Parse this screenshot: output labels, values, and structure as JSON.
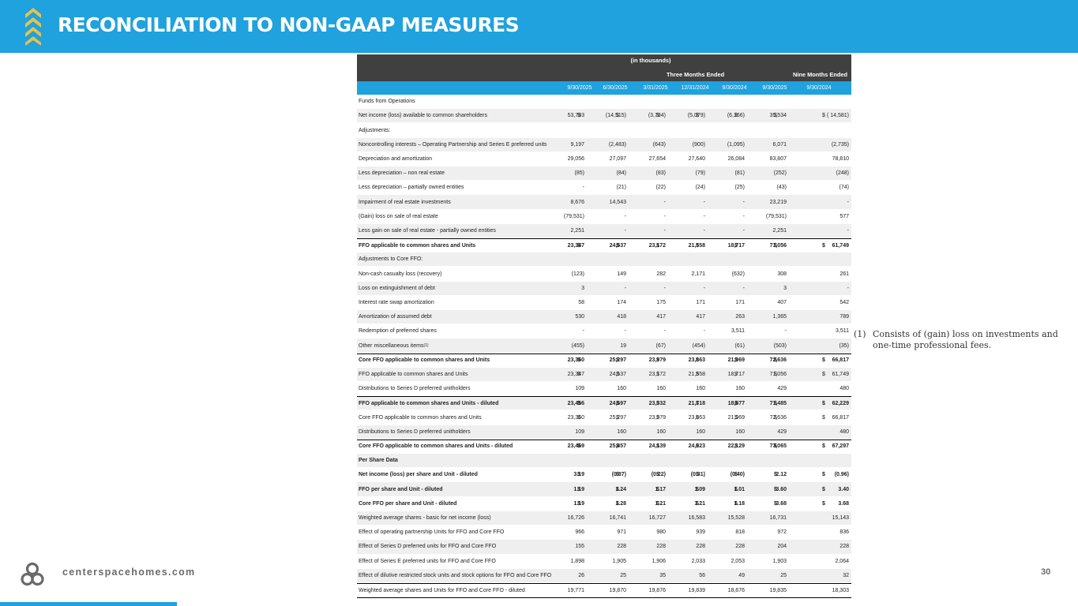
{
  "header": {
    "title": "RECONCILIATION TO NON-GAAP MEASURES"
  },
  "table": {
    "units_note": "(in thousands)",
    "group_three": "Three Months Ended",
    "group_nine": "Nine Months Ended",
    "columns": [
      "9/30/2025",
      "6/30/2025",
      "3/31/2025",
      "12/31/2024",
      "9/30/2024",
      "9/30/2025",
      "9/30/2024"
    ],
    "rows": [
      {
        "label": "Funds from Operations",
        "values": []
      },
      {
        "label": "Net income (loss) available to common shareholders",
        "dollar": true,
        "values": [
          "53,783",
          "(14,515)",
          "(3,734)",
          "(5,079)",
          "(6,166)",
          "35,534",
          "( 14,581)"
        ]
      },
      {
        "label": "Adjustments:",
        "values": []
      },
      {
        "label": "Noncontrolling interests – Operating Partnership and Series E preferred units",
        "values": [
          "9,197",
          "(2,483)",
          "(643)",
          "(900)",
          "(1,095)",
          "6,071",
          "(2,735)"
        ]
      },
      {
        "label": "Depreciation and amortization",
        "values": [
          "29,056",
          "27,097",
          "27,654",
          "27,640",
          "26,084",
          "83,807",
          "78,810"
        ]
      },
      {
        "label": "Less depreciation – non real estate",
        "values": [
          "(85)",
          "(84)",
          "(83)",
          "(79)",
          "(81)",
          "(252)",
          "(248)"
        ]
      },
      {
        "label": "Less depreciation – partially owned entities",
        "values": [
          "-",
          "(21)",
          "(22)",
          "(24)",
          "(25)",
          "(43)",
          "(74)"
        ]
      },
      {
        "label": "Impairment of real estate investments",
        "values": [
          "8,676",
          "14,543",
          "-",
          "-",
          "-",
          "23,219",
          "-"
        ]
      },
      {
        "label": "(Gain) loss on sale of real estate",
        "values": [
          "(79,531)",
          "-",
          "-",
          "-",
          "-",
          "(79,531)",
          "577"
        ]
      },
      {
        "label": "Less gain on sale of real estate - partially owned entities",
        "values": [
          "2,251",
          "-",
          "-",
          "-",
          "-",
          "2,251",
          "-"
        ]
      },
      {
        "label": "FFO applicable to common shares and Units",
        "bold": true,
        "topline": true,
        "dollar": true,
        "values": [
          "23,347",
          "24,537",
          "23,172",
          "21,558",
          "18,717",
          "71,056",
          "61,749"
        ]
      },
      {
        "label": "Adjustments to Core FFO:",
        "values": []
      },
      {
        "label": "Non-cash casualty loss (recovery)",
        "values": [
          "(123)",
          "149",
          "282",
          "2,171",
          "(632)",
          "308",
          "261"
        ]
      },
      {
        "label": "Loss on extinguishment of debt",
        "values": [
          "3",
          "-",
          "-",
          "-",
          "-",
          "3",
          "-"
        ]
      },
      {
        "label": "Interest rate swap amortization",
        "values": [
          "58",
          "174",
          "175",
          "171",
          "171",
          "407",
          "542"
        ]
      },
      {
        "label": "Amortization of assumed debt",
        "values": [
          "530",
          "418",
          "417",
          "417",
          "263",
          "1,365",
          "789"
        ]
      },
      {
        "label": "Redemption of preferred shares",
        "values": [
          "-",
          "-",
          "-",
          "-",
          "3,511",
          "-",
          "3,511"
        ]
      },
      {
        "label": "Other miscellaneous items",
        "sup": "(1)",
        "values": [
          "(455)",
          "19",
          "(67)",
          "(454)",
          "(61)",
          "(503)",
          "(35)"
        ]
      },
      {
        "label": "Core FFO applicable to common shares and Units",
        "bold": true,
        "topline": true,
        "dollar": true,
        "values": [
          "23,360",
          "25,297",
          "23,979",
          "23,863",
          "21,969",
          "72,636",
          "66,817"
        ]
      },
      {
        "label": "FFO applicable to common shares and Units",
        "dollar": true,
        "values": [
          "23,347",
          "24,537",
          "23,172",
          "21,558",
          "18,717",
          "71,056",
          "61,749"
        ]
      },
      {
        "label": "Distributions to Series D preferred unitholders",
        "values": [
          "109",
          "160",
          "160",
          "160",
          "160",
          "429",
          "480"
        ]
      },
      {
        "label": "FFO applicable to common shares and Units - diluted",
        "bold": true,
        "topline": true,
        "dollar": true,
        "values": [
          "23,456",
          "24,697",
          "23,332",
          "21,718",
          "18,877",
          "71,485",
          "62,229"
        ]
      },
      {
        "label": "Core FFO applicable to common shares and Units",
        "dollar": true,
        "values": [
          "23,360",
          "25,297",
          "23,979",
          "23,863",
          "21,969",
          "72,636",
          "66,817"
        ]
      },
      {
        "label": "Distributions to Series D preferred unitholders",
        "values": [
          "109",
          "160",
          "160",
          "160",
          "160",
          "429",
          "480"
        ]
      },
      {
        "label": "Core FFO applicable to common shares and Units - diluted",
        "bold": true,
        "topline": true,
        "dollar": true,
        "values": [
          "23,469",
          "25,457",
          "24,139",
          "24,023",
          "22,129",
          "73,065",
          "67,297"
        ]
      },
      {
        "label": "Per Share Data",
        "bold": true,
        "values": []
      },
      {
        "label": "Net income (loss) per share and Unit - diluted",
        "bold": true,
        "dollar": true,
        "values": [
          "3.19",
          "(0.87)",
          "(0.22)",
          "(0.31)",
          "(0.40)",
          "2.12",
          "(0.96)"
        ]
      },
      {
        "label": "FFO per share and Unit - diluted",
        "bold": true,
        "dollar": true,
        "values": [
          "1.19",
          "1.24",
          "1.17",
          "1.09",
          "1.01",
          "3.60",
          "3.40"
        ]
      },
      {
        "label": "Core FFO per share and Unit - diluted",
        "bold": true,
        "dollar": true,
        "values": [
          "1.19",
          "1.28",
          "1.21",
          "1.21",
          "1.18",
          "3.68",
          "3.68"
        ]
      },
      {
        "label": "Weighted average shares - basic for net  income (loss)",
        "values": [
          "16,726",
          "16,741",
          "16,727",
          "16,583",
          "15,528",
          "16,731",
          "15,143"
        ]
      },
      {
        "label": "Effect of operating partnership Units for FFO and Core FFO",
        "values": [
          "966",
          "971",
          "980",
          "939",
          "818",
          "972",
          "836"
        ]
      },
      {
        "label": "Effect of Series D preferred units for FFO and Core FFO",
        "values": [
          "155",
          "228",
          "228",
          "228",
          "228",
          "204",
          "228"
        ]
      },
      {
        "label": "Effect of Series E preferred units for FFO and Core FFO",
        "values": [
          "1,898",
          "1,905",
          "1,906",
          "2,033",
          "2,053",
          "1,903",
          "2,064"
        ]
      },
      {
        "label": "Effect of dilutive restricted stock units and stock options for FFO and Core FFO",
        "values": [
          "26",
          "25",
          "35",
          "56",
          "49",
          "25",
          "32"
        ]
      },
      {
        "label": "Weighted average shares and Units for FFO and Core FFO - diluted",
        "topline": true,
        "values": [
          "19,771",
          "19,870",
          "19,876",
          "19,839",
          "18,676",
          "19,835",
          "18,303"
        ]
      }
    ]
  },
  "footnote": {
    "number": "(1)",
    "text": "Consists of (gain) loss on investments and one-time professional fees."
  },
  "footer": {
    "website": "centerspacehomes.com",
    "page_number": "30"
  },
  "colors": {
    "brand_blue": "#1fa2dd",
    "brand_gold": "#e8c24a",
    "header_dark": "#404040"
  },
  "icons": {
    "header_mark": "chevron-stack-icon",
    "logo": "centerspace-logo-icon"
  }
}
